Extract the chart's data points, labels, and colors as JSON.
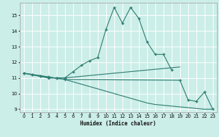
{
  "xlabel": "Humidex (Indice chaleur)",
  "bg_color": "#cceee8",
  "grid_color": "#ffffff",
  "line_color": "#2e7d72",
  "xlim": [
    -0.5,
    23.5
  ],
  "ylim": [
    8.8,
    15.8
  ],
  "yticks": [
    9,
    10,
    11,
    12,
    13,
    14,
    15
  ],
  "xticks": [
    0,
    1,
    2,
    3,
    4,
    5,
    6,
    7,
    8,
    9,
    10,
    11,
    12,
    13,
    14,
    15,
    16,
    17,
    18,
    19,
    20,
    21,
    22,
    23
  ],
  "line1_x": [
    0,
    1,
    2,
    3,
    4,
    5,
    6,
    7,
    8,
    9,
    10,
    11,
    12,
    13,
    14,
    15,
    16,
    17,
    18
  ],
  "line1_y": [
    11.3,
    11.2,
    11.1,
    11.0,
    11.0,
    11.0,
    11.4,
    11.8,
    12.1,
    12.3,
    14.1,
    15.5,
    14.5,
    15.5,
    14.8,
    13.3,
    12.5,
    12.5,
    11.5
  ],
  "line2_x": [
    0,
    1,
    2,
    3,
    4,
    5,
    6,
    7,
    8,
    9,
    10,
    11,
    12,
    13,
    14,
    15,
    16,
    17,
    18,
    19
  ],
  "line2_y": [
    11.3,
    11.2,
    11.1,
    11.0,
    11.0,
    11.0,
    11.05,
    11.1,
    11.15,
    11.2,
    11.25,
    11.3,
    11.35,
    11.4,
    11.45,
    11.5,
    11.55,
    11.6,
    11.65,
    11.7
  ],
  "line3_x": [
    0,
    1,
    2,
    3,
    4,
    5,
    6,
    7,
    8,
    9,
    10,
    11,
    12,
    13,
    14,
    15,
    16,
    17,
    18,
    19,
    20,
    21,
    22,
    23
  ],
  "line3_y": [
    11.3,
    11.22,
    11.14,
    11.06,
    10.98,
    10.9,
    10.75,
    10.6,
    10.45,
    10.3,
    10.15,
    10.0,
    9.85,
    9.7,
    9.55,
    9.4,
    9.3,
    9.25,
    9.2,
    9.15,
    9.1,
    9.05,
    9.0,
    9.0
  ],
  "line4_x": [
    0,
    1,
    2,
    3,
    4,
    5,
    19,
    20,
    21,
    22,
    23
  ],
  "line4_y": [
    11.3,
    11.22,
    11.14,
    11.06,
    10.98,
    10.9,
    10.85,
    9.6,
    9.5,
    10.1,
    9.0
  ]
}
